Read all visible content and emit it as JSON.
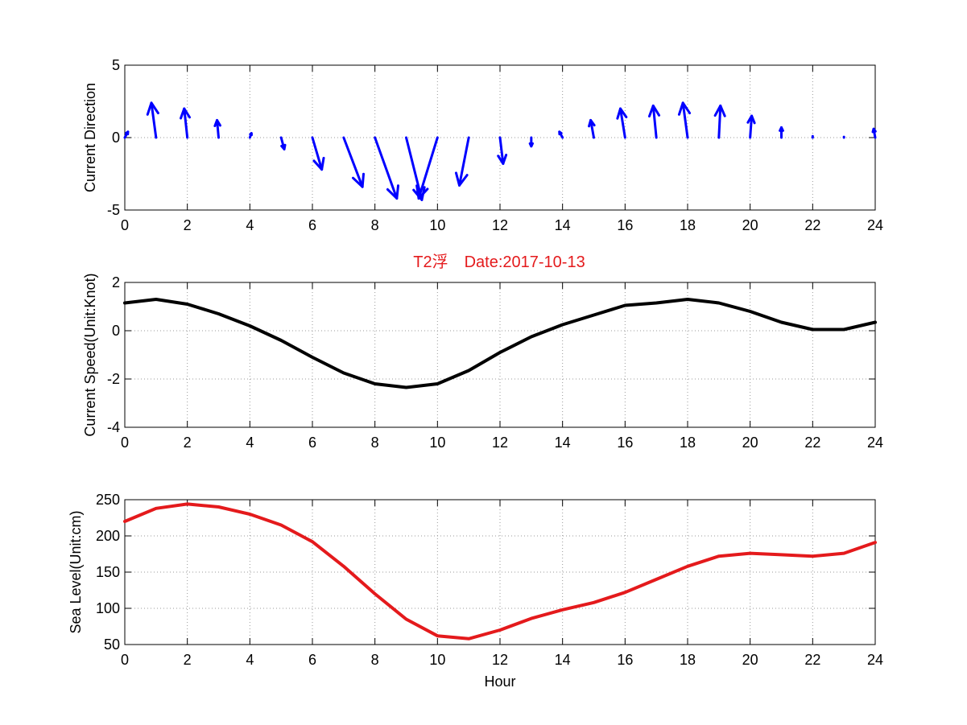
{
  "title": "T2浮　Date:2017-10-13",
  "title_color": "#e41a1c",
  "x_ticks": [
    "0",
    "2",
    "4",
    "6",
    "8",
    "10",
    "12",
    "14",
    "16",
    "18",
    "20",
    "22",
    "24"
  ],
  "chart_data": [
    {
      "type": "quiver",
      "ylabel": "Current Direction",
      "xlim": [
        0,
        24
      ],
      "ylim": [
        -5,
        5
      ],
      "y_ticks": [
        "-5",
        "0",
        "5"
      ],
      "grid": true,
      "color": "#0000ff",
      "x": [
        0,
        1,
        2,
        3,
        4,
        5,
        6,
        7,
        8,
        9,
        10,
        11,
        12,
        13,
        14,
        15,
        16,
        17,
        18,
        19,
        20,
        21,
        22,
        23,
        24
      ],
      "u": [
        0.1,
        -0.15,
        -0.1,
        -0.05,
        0.05,
        0.1,
        0.3,
        0.6,
        0.7,
        0.5,
        -0.6,
        -0.3,
        0.1,
        0.0,
        -0.1,
        -0.1,
        -0.15,
        -0.1,
        -0.15,
        0.05,
        0.05,
        0.0,
        0.0,
        0.0,
        -0.05
      ],
      "v": [
        0.4,
        2.4,
        2.0,
        1.2,
        0.3,
        -0.8,
        -2.2,
        -3.4,
        -4.2,
        -4.3,
        -4.2,
        -3.3,
        -1.8,
        -0.6,
        0.4,
        1.2,
        2.0,
        2.2,
        2.4,
        2.2,
        1.5,
        0.7,
        0.1,
        0.05,
        0.6
      ]
    },
    {
      "type": "line",
      "ylabel": "Current Speed(Unit:Knot)",
      "xlim": [
        0,
        24
      ],
      "ylim": [
        -4,
        2
      ],
      "y_ticks": [
        "-4",
        "-2",
        "0",
        "2"
      ],
      "grid": true,
      "color": "#000000",
      "x": [
        0,
        1,
        2,
        3,
        4,
        5,
        6,
        7,
        8,
        9,
        10,
        11,
        12,
        13,
        14,
        15,
        16,
        17,
        18,
        19,
        20,
        21,
        22,
        23,
        24
      ],
      "series": [
        {
          "values": [
            1.15,
            1.3,
            1.1,
            0.7,
            0.2,
            -0.4,
            -1.1,
            -1.75,
            -2.2,
            -2.35,
            -2.2,
            -1.65,
            -0.9,
            -0.25,
            0.25,
            0.65,
            1.05,
            1.15,
            1.3,
            1.15,
            0.8,
            0.35,
            0.05,
            0.05,
            0.35
          ]
        }
      ]
    },
    {
      "type": "line",
      "ylabel": "Sea Level(Unit:cm)",
      "xlabel": "Hour",
      "xlim": [
        0,
        24
      ],
      "ylim": [
        50,
        250
      ],
      "y_ticks": [
        "50",
        "100",
        "150",
        "200",
        "250"
      ],
      "grid": true,
      "color": "#e41a1c",
      "x": [
        0,
        1,
        2,
        3,
        4,
        5,
        6,
        7,
        8,
        9,
        10,
        11,
        12,
        13,
        14,
        15,
        16,
        17,
        18,
        19,
        20,
        21,
        22,
        23,
        24
      ],
      "series": [
        {
          "values": [
            220,
            238,
            244,
            240,
            230,
            215,
            192,
            158,
            120,
            85,
            62,
            58,
            70,
            86,
            98,
            108,
            122,
            140,
            158,
            172,
            176,
            174,
            172,
            176,
            191
          ]
        }
      ]
    }
  ]
}
